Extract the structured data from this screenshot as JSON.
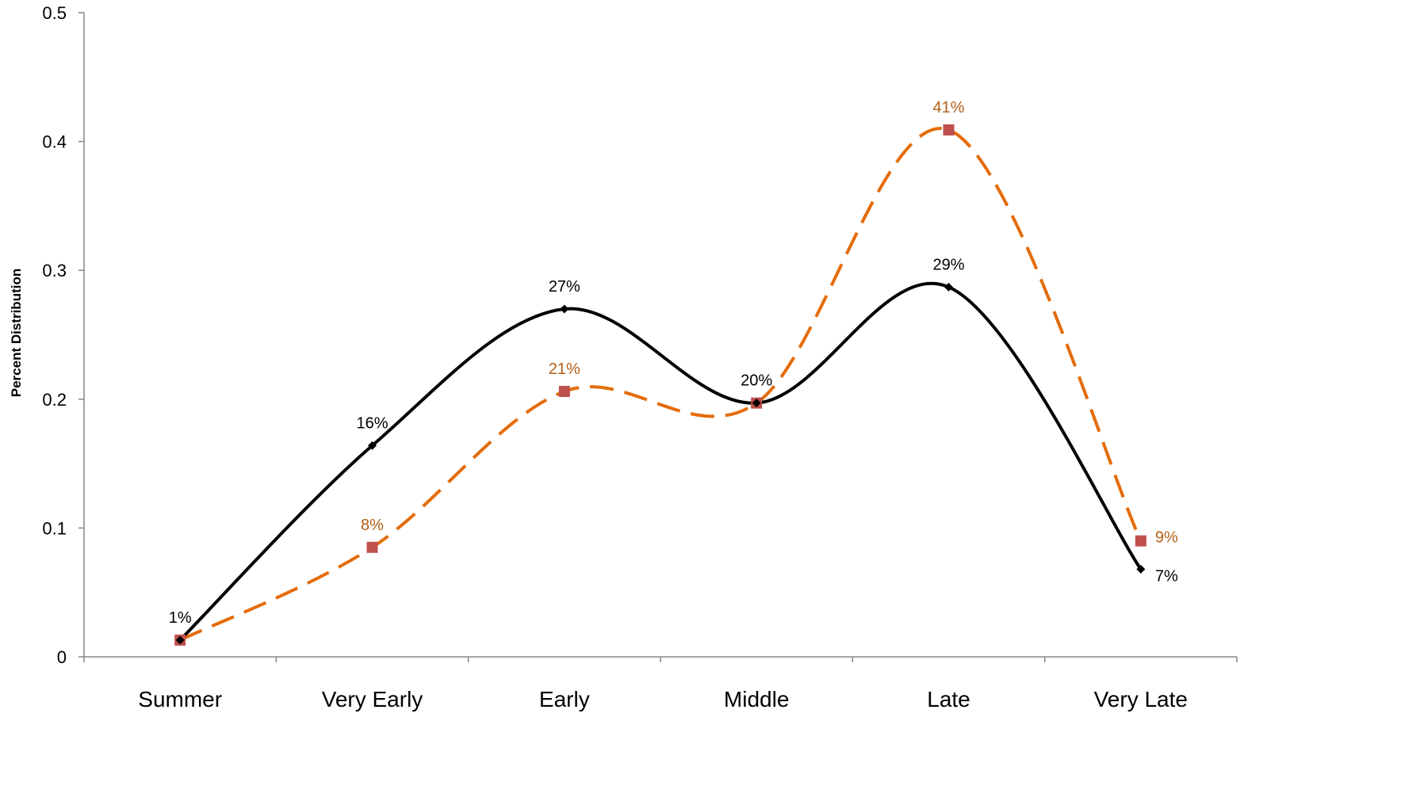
{
  "chart_data": {
    "type": "line",
    "ylabel": "Percent Distribution",
    "xlabel": "",
    "ylim": [
      0,
      0.5
    ],
    "yticks": [
      "0",
      "0.1",
      "0.2",
      "0.3",
      "0.4",
      "0.5"
    ],
    "ytick_values": [
      0,
      0.1,
      0.2,
      0.3,
      0.4,
      0.5
    ],
    "categories": [
      "Summer",
      "Very Early",
      "Early",
      "Middle",
      "Late",
      "Very Late"
    ],
    "smooth": true,
    "legend": "none",
    "grid": false,
    "series": [
      {
        "style": "solid",
        "color": "#000000",
        "label_color": "#000000",
        "marker": "diamond",
        "marker_color": "#000000",
        "values": [
          0.013,
          0.164,
          0.27,
          0.197,
          0.287,
          0.068
        ],
        "labels": [
          "1%",
          "16%",
          "27%",
          "20%",
          "29%",
          "7%"
        ]
      },
      {
        "style": "dashed",
        "color": "#E46C0A",
        "label_color": "#B35F16",
        "marker": "square",
        "marker_color": "#C0504D",
        "values": [
          0.013,
          0.085,
          0.206,
          0.197,
          0.409,
          0.09
        ],
        "labels": [
          "",
          "8%",
          "21%",
          "",
          "41%",
          "9%"
        ]
      }
    ]
  }
}
